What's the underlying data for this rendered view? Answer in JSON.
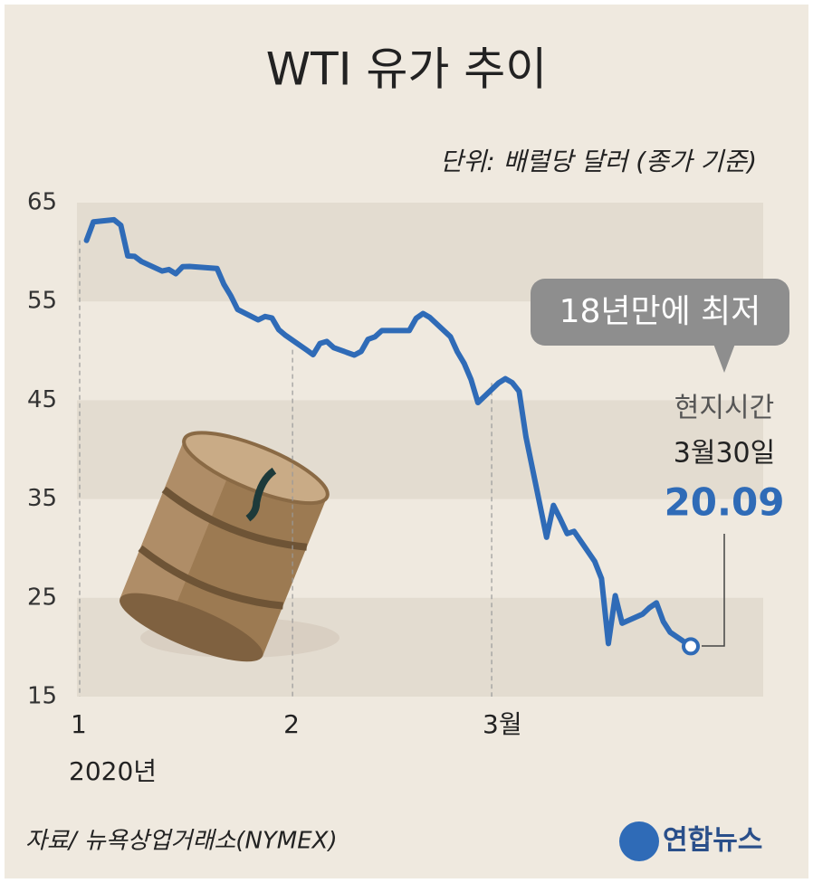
{
  "title": "WTI 유가 추이",
  "subtitle": "단위: 배럴당 달러 (종가 기준)",
  "chart_data": {
    "type": "line",
    "x": [
      1,
      2,
      5,
      6,
      7,
      8,
      9,
      12,
      13,
      14,
      15,
      16,
      20,
      21,
      22,
      23,
      26,
      27,
      28,
      29,
      30,
      33,
      34,
      35,
      36,
      37,
      40,
      41,
      42,
      43,
      44,
      48,
      49,
      50,
      51,
      54,
      55,
      56,
      57,
      58,
      61,
      62,
      63,
      64,
      65,
      68,
      69,
      70,
      71,
      72,
      75,
      76,
      77,
      78,
      79,
      82,
      83,
      84,
      85,
      86,
      89
    ],
    "series": [
      {
        "color": "#2f6bb7",
        "values": [
          61.18,
          63.05,
          63.27,
          62.7,
          59.61,
          59.56,
          59.04,
          58.08,
          58.23,
          57.81,
          58.52,
          58.54,
          58.34,
          56.74,
          55.59,
          54.19,
          53.14,
          53.48,
          53.33,
          52.14,
          51.56,
          50.11,
          49.61,
          50.75,
          50.95,
          50.32,
          49.57,
          49.94,
          51.17,
          51.42,
          52.05,
          52.05,
          53.29,
          53.78,
          53.38,
          51.43,
          49.9,
          48.73,
          47.09,
          44.76,
          46.75,
          47.18,
          46.78,
          45.9,
          41.28,
          31.13,
          34.36,
          32.98,
          31.5,
          31.73,
          28.7,
          26.95,
          20.37,
          25.22,
          22.43,
          23.36,
          24.01,
          24.49,
          22.6,
          21.51,
          20.09
        ]
      }
    ],
    "xlim": [
      0,
      89
    ],
    "xticks": [
      {
        "value": 0,
        "label": "1"
      },
      {
        "value": 31,
        "label": "2"
      },
      {
        "value": 60,
        "label": "3월"
      }
    ],
    "xlabel": "2020년",
    "ylim": [
      15,
      65
    ],
    "yticks": [
      15,
      25,
      35,
      45,
      55,
      65
    ],
    "grid": "bands",
    "annotations": [
      "18년만에 최저",
      "현지시간",
      "3월30일"
    ]
  },
  "source": "자료/ 뉴욕상업거래소(NYMEX)",
  "logo": "연합뉴스"
}
